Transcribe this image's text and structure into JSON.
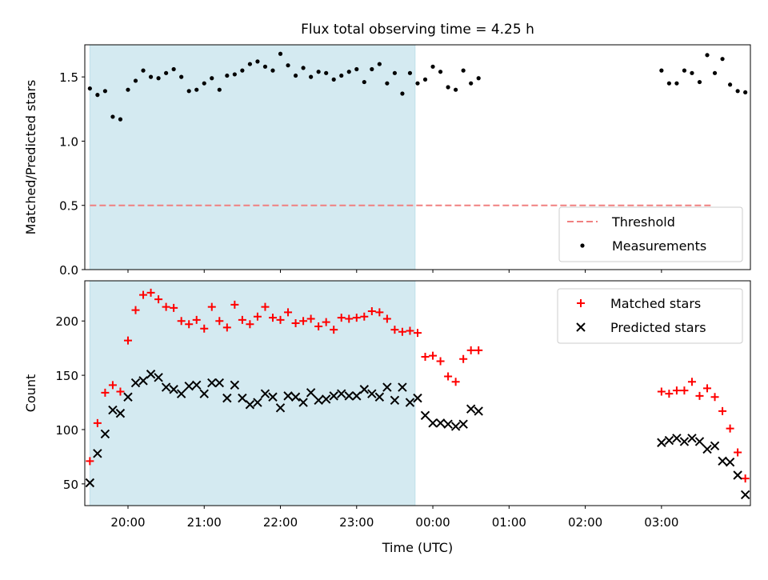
{
  "chart_data": [
    {
      "type": "scatter",
      "title": "Flux total observing time = 4.25 h",
      "ylabel": "Matched/Predicted stars",
      "xlabel": "",
      "ylim": [
        0,
        1.75
      ],
      "xlim": [
        "19:26",
        "04:10"
      ],
      "yticks": [
        0.0,
        0.5,
        1.0,
        1.5
      ],
      "ytick_labels": [
        "0.0",
        "0.5",
        "1.0",
        "1.5"
      ],
      "shaded_interval": [
        "19:30",
        "23:46"
      ],
      "shade_color": "#d4eaf1",
      "grid": false,
      "legend_position": "lower right",
      "threshold": {
        "name": "Threshold",
        "value": 0.5,
        "x_range": [
          "19:30",
          "03:40"
        ],
        "color": "#f08080"
      },
      "series": [
        {
          "name": "Measurements",
          "marker": "dot",
          "color": "#000000",
          "points": [
            [
              "19:30",
              1.41
            ],
            [
              "19:36",
              1.36
            ],
            [
              "19:42",
              1.39
            ],
            [
              "19:48",
              1.19
            ],
            [
              "19:54",
              1.17
            ],
            [
              "20:00",
              1.4
            ],
            [
              "20:06",
              1.47
            ],
            [
              "20:12",
              1.55
            ],
            [
              "20:18",
              1.5
            ],
            [
              "20:24",
              1.49
            ],
            [
              "20:30",
              1.53
            ],
            [
              "20:36",
              1.56
            ],
            [
              "20:42",
              1.5
            ],
            [
              "20:48",
              1.39
            ],
            [
              "20:54",
              1.4
            ],
            [
              "21:00",
              1.45
            ],
            [
              "21:06",
              1.49
            ],
            [
              "21:12",
              1.4
            ],
            [
              "21:18",
              1.51
            ],
            [
              "21:24",
              1.52
            ],
            [
              "21:30",
              1.55
            ],
            [
              "21:36",
              1.6
            ],
            [
              "21:42",
              1.62
            ],
            [
              "21:48",
              1.58
            ],
            [
              "21:54",
              1.55
            ],
            [
              "22:00",
              1.68
            ],
            [
              "22:06",
              1.59
            ],
            [
              "22:12",
              1.51
            ],
            [
              "22:18",
              1.57
            ],
            [
              "22:24",
              1.5
            ],
            [
              "22:30",
              1.54
            ],
            [
              "22:36",
              1.53
            ],
            [
              "22:42",
              1.48
            ],
            [
              "22:48",
              1.51
            ],
            [
              "22:54",
              1.54
            ],
            [
              "23:00",
              1.56
            ],
            [
              "23:06",
              1.46
            ],
            [
              "23:12",
              1.56
            ],
            [
              "23:18",
              1.6
            ],
            [
              "23:24",
              1.45
            ],
            [
              "23:30",
              1.53
            ],
            [
              "23:36",
              1.37
            ],
            [
              "23:42",
              1.53
            ],
            [
              "23:48",
              1.45
            ],
            [
              "23:54",
              1.48
            ],
            [
              "00:00",
              1.58
            ],
            [
              "00:06",
              1.54
            ],
            [
              "00:12",
              1.42
            ],
            [
              "00:18",
              1.4
            ],
            [
              "00:24",
              1.55
            ],
            [
              "00:30",
              1.45
            ],
            [
              "00:36",
              1.49
            ],
            [
              "03:00",
              1.55
            ],
            [
              "03:06",
              1.45
            ],
            [
              "03:12",
              1.45
            ],
            [
              "03:18",
              1.55
            ],
            [
              "03:24",
              1.53
            ],
            [
              "03:30",
              1.46
            ],
            [
              "03:36",
              1.67
            ],
            [
              "03:42",
              1.53
            ],
            [
              "03:48",
              1.64
            ],
            [
              "03:54",
              1.44
            ],
            [
              "04:00",
              1.39
            ],
            [
              "04:06",
              1.38
            ]
          ]
        }
      ],
      "legend": [
        {
          "label": "Threshold",
          "marker": "dashed-line",
          "color": "#f08080"
        },
        {
          "label": "Measurements",
          "marker": "dot",
          "color": "#000000"
        }
      ]
    },
    {
      "type": "scatter",
      "title": "",
      "xlabel": "Time (UTC)",
      "ylabel": "Count",
      "ylim": [
        30,
        237
      ],
      "xlim": [
        "19:26",
        "04:10"
      ],
      "yticks": [
        50,
        100,
        150,
        200
      ],
      "ytick_labels": [
        "50",
        "100",
        "150",
        "200"
      ],
      "xticks": [
        "20:00",
        "21:00",
        "22:00",
        "23:00",
        "00:00",
        "01:00",
        "02:00",
        "03:00"
      ],
      "xtick_labels": [
        "20:00",
        "21:00",
        "22:00",
        "23:00",
        "00:00",
        "01:00",
        "02:00",
        "03:00"
      ],
      "shaded_interval": [
        "19:30",
        "23:46"
      ],
      "shade_color": "#d4eaf1",
      "grid": false,
      "legend_position": "upper right",
      "series": [
        {
          "name": "Matched stars",
          "marker": "plus",
          "color": "#ff0000",
          "points": [
            [
              "19:30",
              71
            ],
            [
              "19:36",
              106
            ],
            [
              "19:42",
              134
            ],
            [
              "19:48",
              141
            ],
            [
              "19:54",
              135
            ],
            [
              "20:00",
              182
            ],
            [
              "20:06",
              210
            ],
            [
              "20:12",
              224
            ],
            [
              "20:18",
              226
            ],
            [
              "20:24",
              220
            ],
            [
              "20:30",
              213
            ],
            [
              "20:36",
              212
            ],
            [
              "20:42",
              200
            ],
            [
              "20:48",
              197
            ],
            [
              "20:54",
              201
            ],
            [
              "21:00",
              193
            ],
            [
              "21:06",
              213
            ],
            [
              "21:12",
              200
            ],
            [
              "21:18",
              194
            ],
            [
              "21:24",
              215
            ],
            [
              "21:30",
              201
            ],
            [
              "21:36",
              197
            ],
            [
              "21:42",
              204
            ],
            [
              "21:48",
              213
            ],
            [
              "21:54",
              203
            ],
            [
              "22:00",
              201
            ],
            [
              "22:06",
              208
            ],
            [
              "22:12",
              198
            ],
            [
              "22:18",
              200
            ],
            [
              "22:24",
              202
            ],
            [
              "22:30",
              195
            ],
            [
              "22:36",
              199
            ],
            [
              "22:42",
              192
            ],
            [
              "22:48",
              203
            ],
            [
              "22:54",
              202
            ],
            [
              "23:00",
              203
            ],
            [
              "23:06",
              204
            ],
            [
              "23:12",
              209
            ],
            [
              "23:18",
              208
            ],
            [
              "23:24",
              202
            ],
            [
              "23:30",
              192
            ],
            [
              "23:36",
              190
            ],
            [
              "23:42",
              191
            ],
            [
              "23:48",
              189
            ],
            [
              "23:54",
              167
            ],
            [
              "00:00",
              168
            ],
            [
              "00:06",
              163
            ],
            [
              "00:12",
              149
            ],
            [
              "00:18",
              144
            ],
            [
              "00:24",
              165
            ],
            [
              "00:30",
              173
            ],
            [
              "00:36",
              173
            ],
            [
              "03:00",
              135
            ],
            [
              "03:06",
              133
            ],
            [
              "03:12",
              136
            ],
            [
              "03:18",
              136
            ],
            [
              "03:24",
              144
            ],
            [
              "03:30",
              131
            ],
            [
              "03:36",
              138
            ],
            [
              "03:42",
              130
            ],
            [
              "03:48",
              117
            ],
            [
              "03:54",
              101
            ],
            [
              "04:00",
              79
            ],
            [
              "04:06",
              55
            ]
          ]
        },
        {
          "name": "Predicted stars",
          "marker": "x",
          "color": "#000000",
          "points": [
            [
              "19:30",
              51
            ],
            [
              "19:36",
              78
            ],
            [
              "19:42",
              96
            ],
            [
              "19:48",
              118
            ],
            [
              "19:54",
              115
            ],
            [
              "20:00",
              130
            ],
            [
              "20:06",
              143
            ],
            [
              "20:12",
              145
            ],
            [
              "20:18",
              151
            ],
            [
              "20:24",
              148
            ],
            [
              "20:30",
              139
            ],
            [
              "20:36",
              137
            ],
            [
              "20:42",
              133
            ],
            [
              "20:48",
              140
            ],
            [
              "20:54",
              141
            ],
            [
              "21:00",
              133
            ],
            [
              "21:06",
              143
            ],
            [
              "21:12",
              143
            ],
            [
              "21:18",
              129
            ],
            [
              "21:24",
              141
            ],
            [
              "21:30",
              129
            ],
            [
              "21:36",
              123
            ],
            [
              "21:42",
              125
            ],
            [
              "21:48",
              133
            ],
            [
              "21:54",
              130
            ],
            [
              "22:00",
              120
            ],
            [
              "22:06",
              131
            ],
            [
              "22:12",
              130
            ],
            [
              "22:18",
              125
            ],
            [
              "22:24",
              134
            ],
            [
              "22:30",
              127
            ],
            [
              "22:36",
              128
            ],
            [
              "22:42",
              131
            ],
            [
              "22:48",
              133
            ],
            [
              "22:54",
              131
            ],
            [
              "23:00",
              131
            ],
            [
              "23:06",
              137
            ],
            [
              "23:12",
              133
            ],
            [
              "23:18",
              130
            ],
            [
              "23:24",
              139
            ],
            [
              "23:30",
              127
            ],
            [
              "23:36",
              139
            ],
            [
              "23:42",
              125
            ],
            [
              "23:48",
              129
            ],
            [
              "23:54",
              113
            ],
            [
              "00:00",
              106
            ],
            [
              "00:06",
              106
            ],
            [
              "00:12",
              105
            ],
            [
              "00:18",
              103
            ],
            [
              "00:24",
              105
            ],
            [
              "00:30",
              119
            ],
            [
              "00:36",
              117
            ],
            [
              "03:00",
              88
            ],
            [
              "03:06",
              90
            ],
            [
              "03:12",
              92
            ],
            [
              "03:18",
              89
            ],
            [
              "03:24",
              92
            ],
            [
              "03:30",
              89
            ],
            [
              "03:36",
              82
            ],
            [
              "03:42",
              85
            ],
            [
              "03:48",
              71
            ],
            [
              "03:54",
              70
            ],
            [
              "04:00",
              58
            ],
            [
              "04:06",
              40
            ]
          ]
        }
      ],
      "legend": [
        {
          "label": "Matched stars",
          "marker": "plus",
          "color": "#ff0000"
        },
        {
          "label": "Predicted stars",
          "marker": "x",
          "color": "#000000"
        }
      ]
    }
  ]
}
